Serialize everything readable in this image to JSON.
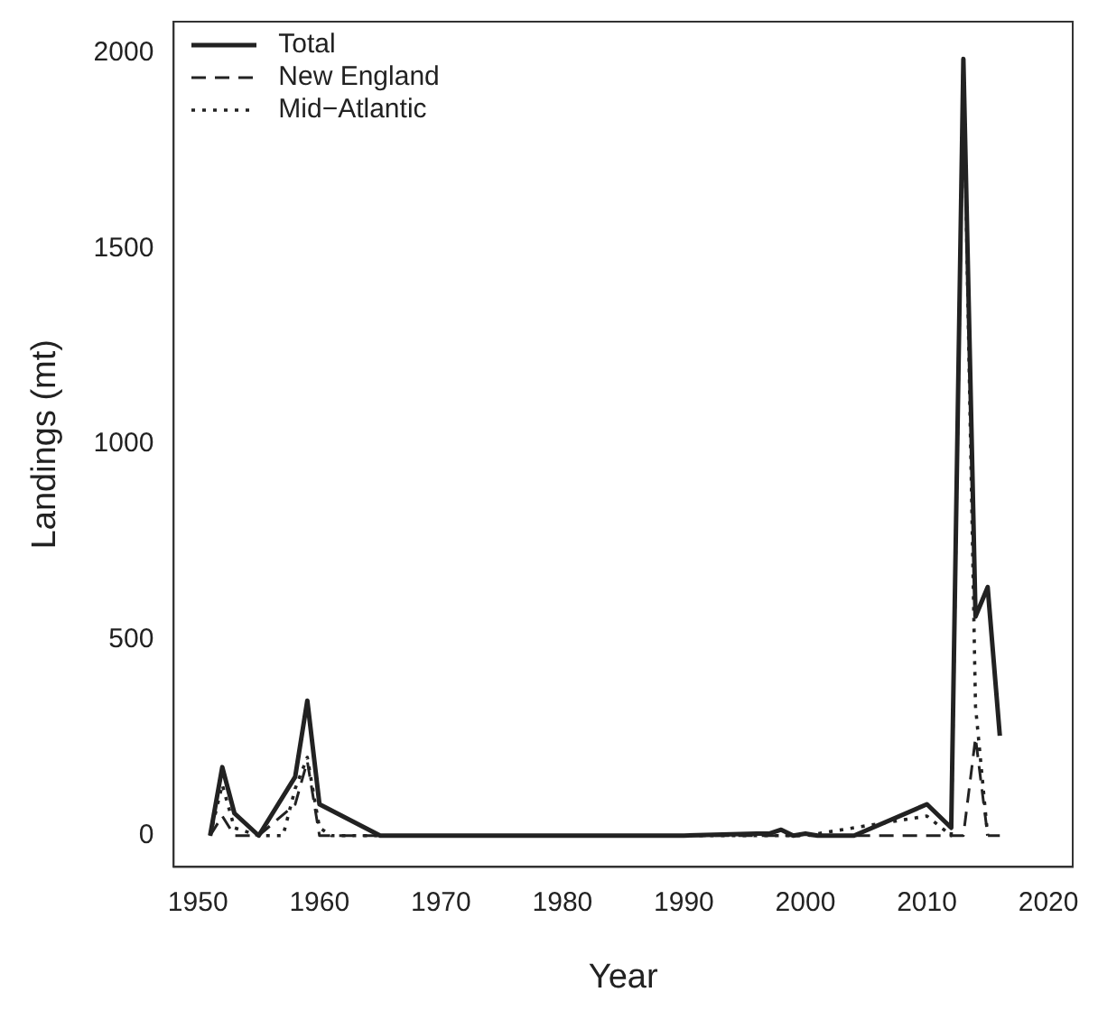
{
  "chart_data": {
    "type": "line",
    "xlabel": "Year",
    "ylabel": "Landings (mt)",
    "xlim": [
      1948,
      2022
    ],
    "xticks": [
      1950,
      1960,
      1970,
      1980,
      1990,
      2000,
      2010,
      2020
    ],
    "ylim": [
      -80,
      2080
    ],
    "yticks": [
      0,
      500,
      1000,
      1500,
      2000
    ],
    "legend": "top left",
    "grid": false,
    "marker": "none",
    "series": [
      {
        "name": "Total",
        "color": "#222222",
        "line_style": "solid",
        "x": [
          1951,
          1952,
          1953,
          1955,
          1958,
          1959,
          1960,
          1965,
          1970,
          1980,
          1990,
          1996,
          1997,
          1998,
          1999,
          2000,
          2001,
          2004,
          2010,
          2012,
          2013,
          2014,
          2015,
          2016
        ],
        "values": [
          0,
          175,
          57,
          0,
          150,
          345,
          80,
          0,
          0,
          0,
          0,
          5,
          5,
          15,
          0,
          5,
          0,
          0,
          80,
          20,
          1985,
          560,
          635,
          255
        ]
      },
      {
        "name": "New England",
        "color": "#222222",
        "line_style": "dashed",
        "x": [
          1951,
          1952,
          1953,
          1955,
          1958,
          1959,
          1960,
          1965,
          1970,
          1980,
          1990,
          2000,
          2010,
          2012,
          2013,
          2014,
          2015,
          2016
        ],
        "values": [
          0,
          50,
          0,
          0,
          80,
          190,
          0,
          0,
          0,
          0,
          0,
          0,
          0,
          0,
          0,
          250,
          0,
          0
        ]
      },
      {
        "name": "Mid−Atlantic",
        "color": "#222222",
        "line_style": "dotted",
        "x": [
          1951,
          1952,
          1953,
          1955,
          1957,
          1958,
          1959,
          1960,
          1961,
          1965,
          1970,
          1980,
          1990,
          2000,
          2010,
          2012,
          2013,
          2014,
          2015
        ],
        "values": [
          0,
          130,
          20,
          0,
          0,
          120,
          200,
          20,
          0,
          0,
          0,
          0,
          0,
          0,
          50,
          0,
          1980,
          330,
          0
        ]
      }
    ]
  }
}
